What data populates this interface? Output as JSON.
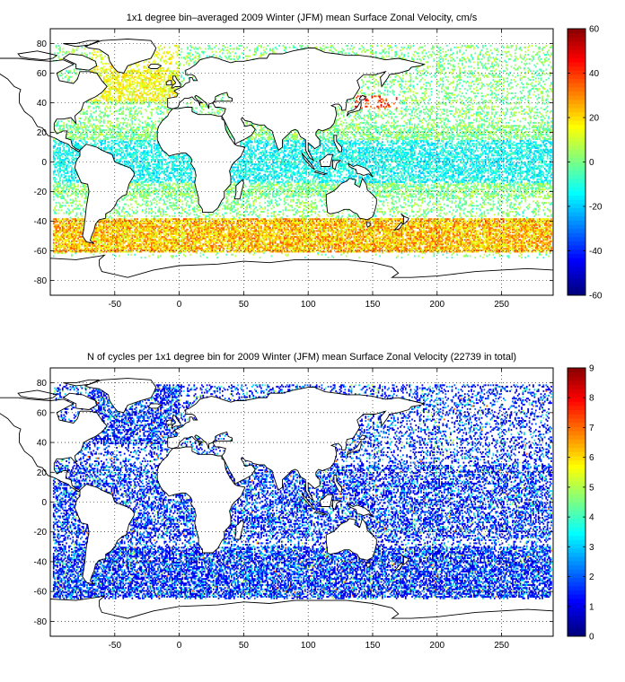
{
  "chart_data": [
    {
      "type": "heatmap",
      "title": "1x1 degree bin–averaged 2009 Winter (JFM) mean Surface Zonal Velocity, cm/s",
      "xlim": [
        -100,
        290
      ],
      "ylim": [
        -90,
        90
      ],
      "x_ticks": [
        "-50",
        "0",
        "50",
        "100",
        "150",
        "200",
        "250"
      ],
      "y_ticks": [
        "80",
        "60",
        "40",
        "20",
        "0",
        "-20",
        "-40",
        "-60",
        "-80"
      ],
      "colorbar": {
        "min": -60,
        "max": 60,
        "ticks": [
          "60",
          "40",
          "20",
          "0",
          "-20",
          "-40",
          "-60"
        ],
        "colormap": "jet"
      },
      "grid": true,
      "coastlines": true
    },
    {
      "type": "heatmap",
      "title": "N of cycles per 1x1 degree bin for 2009 Winter (JFM) mean Surface Zonal Velocity (22739 in total)",
      "xlim": [
        -100,
        290
      ],
      "ylim": [
        -90,
        90
      ],
      "x_ticks": [
        "-50",
        "0",
        "50",
        "100",
        "150",
        "200",
        "250"
      ],
      "y_ticks": [
        "80",
        "60",
        "40",
        "20",
        "0",
        "-20",
        "-40",
        "-60",
        "-80"
      ],
      "colorbar": {
        "min": 0,
        "max": 9,
        "ticks": [
          "9",
          "8",
          "7",
          "6",
          "5",
          "4",
          "3",
          "2",
          "1",
          "0"
        ],
        "colormap": "jet"
      },
      "grid": true,
      "coastlines": true
    }
  ]
}
